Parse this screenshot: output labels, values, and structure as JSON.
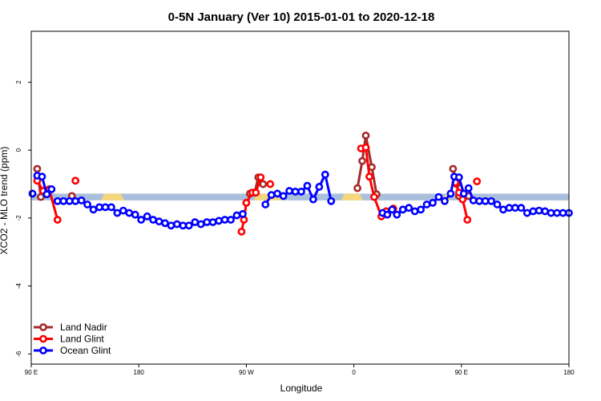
{
  "chart_data": {
    "type": "line",
    "title": "0-5N January (Ver 10)   2015-01-01 to 2020-12-18",
    "xlabel": "Longitude",
    "ylabel": "XCO2 - MLO trend (ppm)",
    "xlim": [
      -90,
      360
    ],
    "ylim": [
      -6.3,
      3.5
    ],
    "x_ticks": [
      {
        "value": -90,
        "label": "90 E"
      },
      {
        "value": 0,
        "label": "180"
      },
      {
        "value": 90,
        "label": "90 W"
      },
      {
        "value": 180,
        "label": "0"
      },
      {
        "value": 270,
        "label": "90 E"
      },
      {
        "value": 360,
        "label": "180"
      }
    ],
    "y_ticks": [
      {
        "value": -6,
        "label": "-6"
      },
      {
        "value": -4,
        "label": "-4"
      },
      {
        "value": -2,
        "label": "-2"
      },
      {
        "value": 0,
        "label": "0"
      },
      {
        "value": 2,
        "label": "2"
      }
    ],
    "grid": false,
    "legend_position": "bottom-left",
    "band": {
      "ymin": -1.48,
      "ymax": -1.28,
      "color": "#a9bfdc",
      "land_color": "#f5d77e",
      "land_ranges": [
        [
          -32,
          -12
        ],
        [
          96,
          120
        ],
        [
          169,
          188
        ],
        [
          254,
          261
        ]
      ]
    },
    "series": [
      {
        "name": "Land Nadir",
        "color": "#a52a2a",
        "segments": [
          [
            [
              -85,
              -0.55
            ],
            [
              -82,
              -1.38
            ],
            [
              -77,
              -1.2
            ]
          ],
          [
            [
              -56,
              -1.35
            ]
          ],
          [
            [
              93,
              -1.28
            ],
            [
              97,
              -1.25
            ],
            [
              100,
              -0.8
            ],
            [
              104,
              -1.0
            ]
          ],
          [
            [
              104,
              -1.0
            ]
          ],
          [
            [
              183,
              -1.12
            ],
            [
              187,
              -0.32
            ],
            [
              190,
              0.43
            ],
            [
              195,
              -0.5
            ],
            [
              199,
              -1.3
            ]
          ],
          [
            [
              263,
              -0.55
            ],
            [
              266,
              -1.0
            ],
            [
              268,
              -1.35
            ]
          ],
          [
            [
              276,
              -1.35
            ]
          ]
        ]
      },
      {
        "name": "Land Glint",
        "color": "#ff0000",
        "segments": [
          [
            [
              -85,
              -0.9
            ],
            [
              -80,
              -1.2
            ],
            [
              -75,
              -1.15
            ],
            [
              -68,
              -2.05
            ]
          ],
          [
            [
              -53,
              -0.9
            ]
          ],
          [
            [
              86,
              -2.4
            ],
            [
              88,
              -2.05
            ],
            [
              90,
              -1.55
            ],
            [
              95,
              -1.25
            ],
            [
              98,
              -1.25
            ],
            [
              102,
              -0.8
            ]
          ],
          [
            [
              110,
              -1.0
            ]
          ],
          [
            [
              186,
              0.05
            ],
            [
              190,
              0.08
            ],
            [
              193,
              -0.78
            ],
            [
              197,
              -1.38
            ],
            [
              203,
              -1.95
            ],
            [
              207,
              -1.8
            ],
            [
              213,
              -1.72
            ]
          ],
          [
            [
              265,
              -0.95
            ],
            [
              268,
              -1.25
            ],
            [
              271,
              -1.45
            ],
            [
              275,
              -2.05
            ]
          ],
          [
            [
              283,
              -0.92
            ]
          ]
        ]
      },
      {
        "name": "Ocean Glint",
        "color": "#0000ff",
        "segments": [
          [
            [
              -89,
              -1.28
            ]
          ],
          [
            [
              -85,
              -0.75
            ],
            [
              -81,
              -0.78
            ],
            [
              -77,
              -1.3
            ],
            [
              -73,
              -1.15
            ]
          ],
          [
            [
              -68,
              -1.5
            ],
            [
              -63,
              -1.5
            ],
            [
              -58,
              -1.5
            ],
            [
              -53,
              -1.5
            ],
            [
              -48,
              -1.48
            ],
            [
              -43,
              -1.6
            ],
            [
              -38,
              -1.75
            ],
            [
              -33,
              -1.68
            ],
            [
              -28,
              -1.68
            ],
            [
              -23,
              -1.68
            ],
            [
              -18,
              -1.85
            ],
            [
              -13,
              -1.78
            ],
            [
              -8,
              -1.85
            ],
            [
              -3,
              -1.9
            ],
            [
              2,
              -2.05
            ],
            [
              7,
              -1.95
            ],
            [
              12,
              -2.05
            ],
            [
              17,
              -2.1
            ],
            [
              22,
              -2.15
            ],
            [
              27,
              -2.22
            ],
            [
              32,
              -2.18
            ],
            [
              37,
              -2.22
            ],
            [
              42,
              -2.22
            ],
            [
              47,
              -2.12
            ],
            [
              52,
              -2.18
            ],
            [
              57,
              -2.12
            ],
            [
              62,
              -2.12
            ],
            [
              67,
              -2.08
            ],
            [
              72,
              -2.05
            ],
            [
              77,
              -2.05
            ],
            [
              82,
              -1.92
            ],
            [
              87,
              -1.88
            ]
          ],
          [
            [
              106,
              -1.6
            ],
            [
              111,
              -1.32
            ],
            [
              116,
              -1.28
            ],
            [
              121,
              -1.35
            ],
            [
              126,
              -1.2
            ],
            [
              131,
              -1.22
            ],
            [
              136,
              -1.22
            ],
            [
              141,
              -1.05
            ],
            [
              146,
              -1.45
            ],
            [
              151,
              -1.08
            ],
            [
              156,
              -0.72
            ],
            [
              161,
              -1.5
            ]
          ],
          [
            [
              204,
              -1.85
            ],
            [
              208,
              -1.9
            ],
            [
              212,
              -1.75
            ],
            [
              216,
              -1.9
            ],
            [
              221,
              -1.75
            ],
            [
              226,
              -1.7
            ],
            [
              231,
              -1.8
            ],
            [
              236,
              -1.75
            ],
            [
              241,
              -1.6
            ],
            [
              246,
              -1.55
            ],
            [
              251,
              -1.38
            ],
            [
              256,
              -1.5
            ],
            [
              261,
              -1.28
            ],
            [
              264,
              -0.78
            ],
            [
              268,
              -0.8
            ],
            [
              272,
              -1.28
            ],
            [
              276,
              -1.12
            ],
            [
              280,
              -1.48
            ],
            [
              285,
              -1.5
            ],
            [
              290,
              -1.5
            ],
            [
              295,
              -1.5
            ],
            [
              300,
              -1.6
            ],
            [
              305,
              -1.75
            ],
            [
              310,
              -1.7
            ],
            [
              315,
              -1.7
            ],
            [
              320,
              -1.7
            ],
            [
              325,
              -1.85
            ],
            [
              330,
              -1.8
            ],
            [
              335,
              -1.78
            ],
            [
              340,
              -1.8
            ],
            [
              345,
              -1.85
            ],
            [
              350,
              -1.85
            ],
            [
              355,
              -1.85
            ],
            [
              360,
              -1.85
            ]
          ]
        ]
      }
    ]
  }
}
